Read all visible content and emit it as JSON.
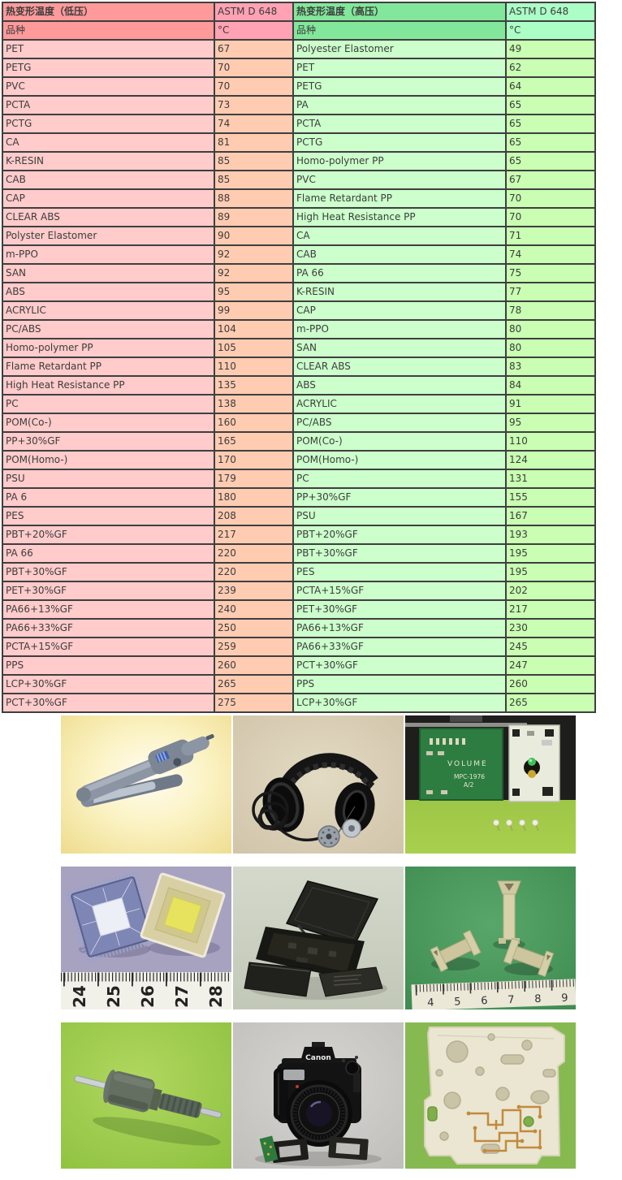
{
  "table": {
    "left": {
      "title": "热变形温度（低压）",
      "standard_label": "ASTM D 648",
      "product_label": "品种",
      "unit_label": "°C",
      "rows": [
        [
          "PET",
          "67"
        ],
        [
          "PETG",
          "70"
        ],
        [
          "PVC",
          "70"
        ],
        [
          "PCTA",
          "73"
        ],
        [
          "PCTG",
          "74"
        ],
        [
          "CA",
          "81"
        ],
        [
          "K-RESIN",
          "85"
        ],
        [
          "CAB",
          "85"
        ],
        [
          "CAP",
          "88"
        ],
        [
          "CLEAR ABS",
          "89"
        ],
        [
          "Polyster Elastomer",
          "90"
        ],
        [
          "m-PPO",
          "92"
        ],
        [
          "SAN",
          "92"
        ],
        [
          "ABS",
          "95"
        ],
        [
          "ACRYLIC",
          "99"
        ],
        [
          "PC/ABS",
          "104"
        ],
        [
          "Homo-polymer PP",
          "105"
        ],
        [
          "Flame Retardant PP",
          "110"
        ],
        [
          "High Heat Resistance PP",
          "135"
        ],
        [
          "PC",
          "138"
        ],
        [
          "POM(Co-)",
          "160"
        ],
        [
          "PP+30%GF",
          "165"
        ],
        [
          "POM(Homo-)",
          "170"
        ],
        [
          "PSU",
          "179"
        ],
        [
          "PA 6",
          "180"
        ],
        [
          "PES",
          "208"
        ],
        [
          "PBT+20%GF",
          "217"
        ],
        [
          "PA 66",
          "220"
        ],
        [
          "PBT+30%GF",
          "220"
        ],
        [
          "PET+30%GF",
          "239"
        ],
        [
          "PA66+13%GF",
          "240"
        ],
        [
          "PA66+33%GF",
          "250"
        ],
        [
          "PCTA+15%GF",
          "259"
        ],
        [
          "PPS",
          "260"
        ],
        [
          "LCP+30%GF",
          "265"
        ],
        [
          "PCT+30%GF",
          "275"
        ]
      ]
    },
    "right": {
      "title": "热变形温度（高压）",
      "standard_label": "ASTM D 648",
      "product_label": "品种",
      "unit_label": "°C",
      "rows": [
        [
          "Polyester Elastomer",
          "49"
        ],
        [
          "PET",
          "62"
        ],
        [
          "PETG",
          "64"
        ],
        [
          "PA",
          "65"
        ],
        [
          "PCTA",
          "65"
        ],
        [
          "PCTG",
          "65"
        ],
        [
          "Homo-polymer PP",
          "65"
        ],
        [
          "PVC",
          "67"
        ],
        [
          "Flame Retardant PP",
          "70"
        ],
        [
          "High Heat Resistance PP",
          "70"
        ],
        [
          "CA",
          "71"
        ],
        [
          "CAB",
          "74"
        ],
        [
          "PA 66",
          "75"
        ],
        [
          "K-RESIN",
          "77"
        ],
        [
          "CAP",
          "78"
        ],
        [
          "m-PPO",
          "80"
        ],
        [
          "SAN",
          "80"
        ],
        [
          "CLEAR ABS",
          "83"
        ],
        [
          "ABS",
          "84"
        ],
        [
          "ACRYLIC",
          "91"
        ],
        [
          "PC/ABS",
          "95"
        ],
        [
          "POM(Co-)",
          "110"
        ],
        [
          "POM(Homo-)",
          "124"
        ],
        [
          "PC",
          "131"
        ],
        [
          "PP+30%GF",
          "155"
        ],
        [
          "PSU",
          "167"
        ],
        [
          "PBT+20%GF",
          "193"
        ],
        [
          "PBT+30%GF",
          "195"
        ],
        [
          "PES",
          "195"
        ],
        [
          "PCTA+15%GF",
          "202"
        ],
        [
          "PET+30%GF",
          "217"
        ],
        [
          "PA66+13%GF",
          "230"
        ],
        [
          "PA66+33%GF",
          "245"
        ],
        [
          "PCT+30%GF",
          "247"
        ],
        [
          "PPS",
          "260"
        ],
        [
          "LCP+30%GF",
          "265"
        ]
      ]
    }
  },
  "colors": {
    "border": "#3f3f3f",
    "left_header_bg": "#ff9a9a",
    "left_header_value_bg": "#ffa2b3",
    "left_row_bg": "#ffcbcb",
    "left_value_bg": "#ffccb2",
    "right_header_bg": "#82e79a",
    "right_header_value_bg": "#abffc6",
    "right_row_bg": "#ccffcc",
    "right_value_bg": "#c9feb3"
  },
  "photos": {
    "pcb": {
      "volume_label": "VOLUME",
      "model_label": "MPC-1976",
      "rev_label": "A/2"
    },
    "camera": {
      "brand": "Canon"
    },
    "ic_ruler": [
      "24",
      "25",
      "26",
      "27",
      "28"
    ],
    "parts_ruler": [
      "4",
      "5",
      "6",
      "7",
      "8",
      "9"
    ]
  }
}
